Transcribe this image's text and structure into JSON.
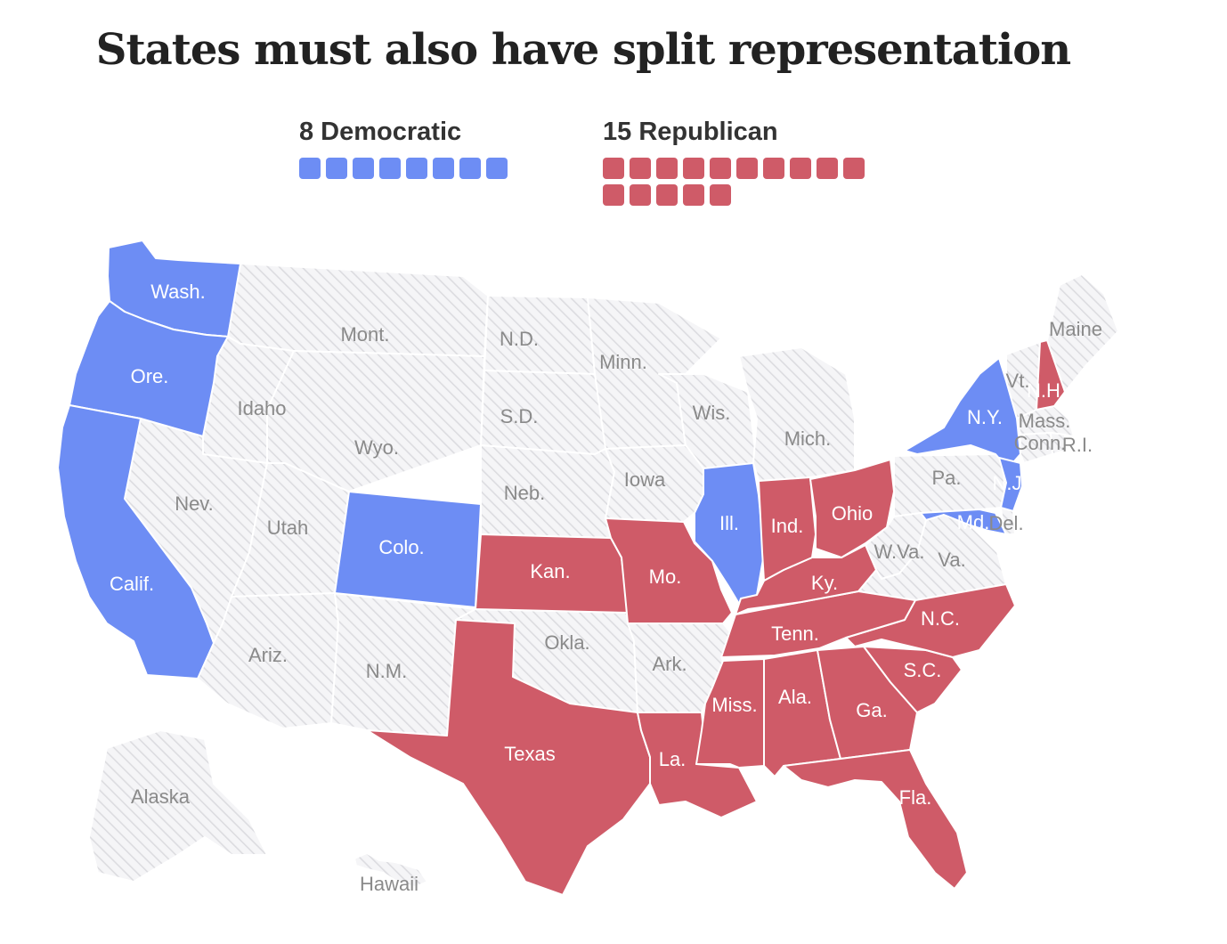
{
  "title": "States must also have split representation",
  "legend": {
    "democratic": {
      "label": "8 Democratic",
      "count": 8
    },
    "republican": {
      "label": "15 Republican",
      "count": 15
    }
  },
  "colors": {
    "democratic": "#6d8df4",
    "republican": "#cf5b68",
    "neutral_fill": "#f5f5f7",
    "neutral_hatch": "#dcdce0",
    "border": "#ffffff"
  },
  "states": [
    {
      "name": "Wash.",
      "party": "democratic"
    },
    {
      "name": "Ore.",
      "party": "democratic"
    },
    {
      "name": "Calif.",
      "party": "democratic"
    },
    {
      "name": "Colo.",
      "party": "democratic"
    },
    {
      "name": "Ill.",
      "party": "democratic"
    },
    {
      "name": "N.Y.",
      "party": "democratic"
    },
    {
      "name": "N.J.",
      "party": "democratic"
    },
    {
      "name": "Md.",
      "party": "democratic"
    },
    {
      "name": "Kan.",
      "party": "republican"
    },
    {
      "name": "Mo.",
      "party": "republican"
    },
    {
      "name": "Texas",
      "party": "republican"
    },
    {
      "name": "La.",
      "party": "republican"
    },
    {
      "name": "Miss.",
      "party": "republican"
    },
    {
      "name": "Ala.",
      "party": "republican"
    },
    {
      "name": "Ga.",
      "party": "republican"
    },
    {
      "name": "Fla.",
      "party": "republican"
    },
    {
      "name": "S.C.",
      "party": "republican"
    },
    {
      "name": "N.C.",
      "party": "republican"
    },
    {
      "name": "Tenn.",
      "party": "republican"
    },
    {
      "name": "Ky.",
      "party": "republican"
    },
    {
      "name": "Ind.",
      "party": "republican"
    },
    {
      "name": "Ohio",
      "party": "republican"
    },
    {
      "name": "N.H.",
      "party": "republican"
    },
    {
      "name": "Mont.",
      "party": "none"
    },
    {
      "name": "N.D.",
      "party": "none"
    },
    {
      "name": "Minn.",
      "party": "none"
    },
    {
      "name": "Idaho",
      "party": "none"
    },
    {
      "name": "S.D.",
      "party": "none"
    },
    {
      "name": "Wis.",
      "party": "none"
    },
    {
      "name": "Mich.",
      "party": "none"
    },
    {
      "name": "Wyo.",
      "party": "none"
    },
    {
      "name": "Nev.",
      "party": "none"
    },
    {
      "name": "Utah",
      "party": "none"
    },
    {
      "name": "Neb.",
      "party": "none"
    },
    {
      "name": "Iowa",
      "party": "none"
    },
    {
      "name": "Ariz.",
      "party": "none"
    },
    {
      "name": "N.M.",
      "party": "none"
    },
    {
      "name": "Okla.",
      "party": "none"
    },
    {
      "name": "Ark.",
      "party": "none"
    },
    {
      "name": "Pa.",
      "party": "none"
    },
    {
      "name": "W.Va.",
      "party": "none"
    },
    {
      "name": "Va.",
      "party": "none"
    },
    {
      "name": "Del.",
      "party": "none"
    },
    {
      "name": "Maine",
      "party": "none"
    },
    {
      "name": "Vt.",
      "party": "none"
    },
    {
      "name": "Mass.",
      "party": "none"
    },
    {
      "name": "Conn.",
      "party": "none"
    },
    {
      "name": "R.I.",
      "party": "none"
    },
    {
      "name": "Alaska",
      "party": "none"
    },
    {
      "name": "Hawaii",
      "party": "none"
    }
  ]
}
